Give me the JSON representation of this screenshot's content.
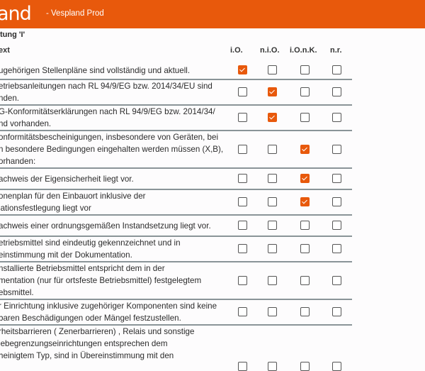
{
  "header": {
    "logo": "and",
    "environment": "-  Vespland Prod",
    "brand_color": "#e8590c"
  },
  "section_title": "tung 'I'",
  "columns": {
    "text": "ext",
    "options": [
      "i.O.",
      "n.i.O.",
      "i.O.n.K.",
      "n.r."
    ]
  },
  "rows": [
    {
      "text": "ugehörigen Stellenpläne sind vollständig und aktuell.",
      "checked": 0
    },
    {
      "text": "etriebsanleitungen nach RL 94/9/EG bzw. 2014/34/EU sind\nnden.",
      "checked": 1
    },
    {
      "text": "G-Konformitätserklärungen nach RL 94/9/EG bzw. 2014/34/\nnd vorhanden.",
      "checked": 1
    },
    {
      "text": "onformitätsbescheinigungen, insbesondere von Geräten, bei\nn besondere Bedingungen eingehalten werden müssen (X,B),\norhanden:",
      "checked": 2
    },
    {
      "text": "achweis der Eigensicherheit liegt vor.",
      "checked": 2
    },
    {
      "text": "onenplan für den Einbauort inklusive der\nlationsfestlegung liegt vor",
      "checked": 2
    },
    {
      "text": "achweis einer ordnungsgemäßen Instandsetzung liegt vor.",
      "checked": null
    },
    {
      "text": "etriebsmittel sind eindeutig gekennzeichnet und in\neinstimmung mit der Dokumentation.",
      "checked": null
    },
    {
      "text": "nstallierte Betriebsmittel entspricht dem in der\nmentation (nur für ortsfeste Betriebsmittel) festgelegtem\nebsmittel.",
      "checked": null
    },
    {
      "text": "r Einrichtung inklusive zugehöriger Komponenten sind keine\nbaren Beschädigungen oder Mängel festzustellen.",
      "checked": null
    },
    {
      "text": "rheitsbarrieren ( Zenerbarrieren) , Relais und sonstige\niebegrenzungseinrichtungen entsprechen dem\nheinigtem Typ, sind in Übereinstimmung mit den",
      "checked": null
    }
  ]
}
